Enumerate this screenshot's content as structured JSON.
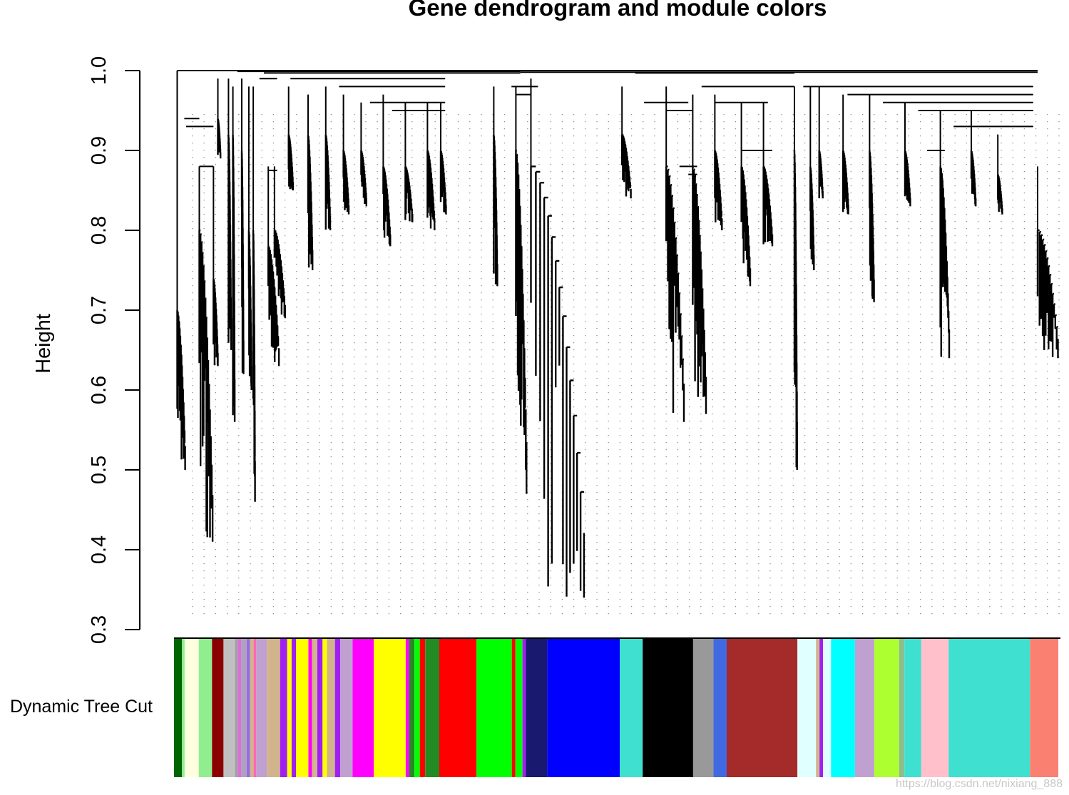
{
  "chart_data": {
    "type": "dendrogram",
    "title": "Gene dendrogram and module colors",
    "ylabel": "Height",
    "xlabel": "",
    "ylim": [
      0.3,
      1.0
    ],
    "yticks": [
      "0.3",
      "0.4",
      "0.5",
      "0.6",
      "0.7",
      "0.8",
      "0.9",
      "1.0"
    ],
    "colorbar_label": "Dynamic Tree Cut",
    "watermark": "https://blog.csdn.net/nixiang_888",
    "leaf_span": [
      0,
      100
    ],
    "branches": [
      {
        "x": 0.2,
        "top": 1.0,
        "bottom": 0.7,
        "dx": 0.9,
        "leaf_end": 0.5
      },
      {
        "x": 2.7,
        "top": 0.88,
        "bottom": 0.8,
        "dx": 1.5,
        "leaf_end": 0.41
      },
      {
        "x": 4.3,
        "top": 0.88,
        "bottom": 0.74,
        "dx": 0.5,
        "leaf_end": 0.63
      },
      {
        "x": 4.8,
        "top": 0.99,
        "bottom": 0.94,
        "dx": 0.3,
        "leaf_end": 0.89
      },
      {
        "x": 6.0,
        "top": 0.99,
        "bottom": 0.92,
        "dx": 0.3,
        "leaf_end": 0.65
      },
      {
        "x": 6.5,
        "top": 0.98,
        "bottom": 0.92,
        "dx": 0.2,
        "leaf_end": 0.56
      },
      {
        "x": 7.5,
        "top": 0.99,
        "bottom": 0.9,
        "dx": 0.2,
        "leaf_end": 0.62
      },
      {
        "x": 8.3,
        "top": 0.98,
        "bottom": 0.8,
        "dx": 0.3,
        "leaf_end": 0.6
      },
      {
        "x": 8.8,
        "top": 0.98,
        "bottom": 0.8,
        "dx": 0.2,
        "leaf_end": 0.46
      },
      {
        "x": 10.5,
        "top": 0.88,
        "bottom": 0.78,
        "dx": 1.2,
        "leaf_end": 0.63
      },
      {
        "x": 11.2,
        "top": 0.88,
        "bottom": 0.8,
        "dx": 1.2,
        "leaf_end": 0.69
      },
      {
        "x": 12.8,
        "top": 0.98,
        "bottom": 0.92,
        "dx": 0.5,
        "leaf_end": 0.85
      },
      {
        "x": 15.0,
        "top": 0.97,
        "bottom": 0.92,
        "dx": 0.5,
        "leaf_end": 0.75
      },
      {
        "x": 17.0,
        "top": 0.98,
        "bottom": 0.92,
        "dx": 0.5,
        "leaf_end": 0.8
      },
      {
        "x": 19.0,
        "top": 0.97,
        "bottom": 0.9,
        "dx": 0.6,
        "leaf_end": 0.82
      },
      {
        "x": 21.0,
        "top": 0.96,
        "bottom": 0.9,
        "dx": 0.6,
        "leaf_end": 0.83
      },
      {
        "x": 23.5,
        "top": 0.97,
        "bottom": 0.88,
        "dx": 0.8,
        "leaf_end": 0.78
      },
      {
        "x": 26.0,
        "top": 0.96,
        "bottom": 0.88,
        "dx": 0.8,
        "leaf_end": 0.81
      },
      {
        "x": 28.5,
        "top": 0.96,
        "bottom": 0.9,
        "dx": 0.8,
        "leaf_end": 0.8
      },
      {
        "x": 30.0,
        "top": 0.96,
        "bottom": 0.9,
        "dx": 0.6,
        "leaf_end": 0.82
      },
      {
        "x": 36.0,
        "top": 0.98,
        "bottom": 0.92,
        "dx": 0.4,
        "leaf_end": 0.73
      },
      {
        "x": 38.5,
        "top": 0.98,
        "bottom": 0.9,
        "dx": 1.2,
        "leaf_end": 0.47
      },
      {
        "x": 40.2,
        "top": 0.99,
        "bottom": 0.88,
        "dx": 6.0,
        "leaf_end": 0.34
      },
      {
        "x": 50.5,
        "top": 0.98,
        "bottom": 0.92,
        "dx": 1.0,
        "leaf_end": 0.84
      },
      {
        "x": 55.5,
        "top": 0.98,
        "bottom": 0.88,
        "dx": 2.0,
        "leaf_end": 0.56
      },
      {
        "x": 58.5,
        "top": 0.97,
        "bottom": 0.88,
        "dx": 1.5,
        "leaf_end": 0.57
      },
      {
        "x": 61.0,
        "top": 0.97,
        "bottom": 0.9,
        "dx": 0.8,
        "leaf_end": 0.8
      },
      {
        "x": 64.0,
        "top": 0.96,
        "bottom": 0.88,
        "dx": 1.0,
        "leaf_end": 0.73
      },
      {
        "x": 66.5,
        "top": 0.96,
        "bottom": 0.88,
        "dx": 1.0,
        "leaf_end": 0.78
      },
      {
        "x": 70.0,
        "top": 0.98,
        "bottom": 0.9,
        "dx": 0.3,
        "leaf_end": 0.5
      },
      {
        "x": 71.8,
        "top": 0.98,
        "bottom": 0.88,
        "dx": 0.4,
        "leaf_end": 0.75
      },
      {
        "x": 72.8,
        "top": 0.98,
        "bottom": 0.9,
        "dx": 0.4,
        "leaf_end": 0.84
      },
      {
        "x": 75.5,
        "top": 0.97,
        "bottom": 0.9,
        "dx": 0.6,
        "leaf_end": 0.82
      },
      {
        "x": 78.5,
        "top": 0.97,
        "bottom": 0.9,
        "dx": 0.5,
        "leaf_end": 0.71
      },
      {
        "x": 82.5,
        "top": 0.96,
        "bottom": 0.9,
        "dx": 0.6,
        "leaf_end": 0.83
      },
      {
        "x": 86.5,
        "top": 0.95,
        "bottom": 0.88,
        "dx": 1.0,
        "leaf_end": 0.64
      },
      {
        "x": 90.0,
        "top": 0.95,
        "bottom": 0.9,
        "dx": 0.5,
        "leaf_end": 0.83
      },
      {
        "x": 93.0,
        "top": 0.92,
        "bottom": 0.87,
        "dx": 0.5,
        "leaf_end": 0.82
      },
      {
        "x": 97.5,
        "top": 0.88,
        "bottom": 0.8,
        "dx": 2.3,
        "leaf_end": 0.64
      }
    ],
    "top_links": [
      {
        "x1": 0.2,
        "x2": 97.5,
        "h": 1.0
      },
      {
        "x1": 7.0,
        "x2": 39.0,
        "h": 0.999
      },
      {
        "x1": 10.0,
        "x2": 39.0,
        "h": 0.997
      },
      {
        "x1": 39.0,
        "x2": 70.0,
        "h": 0.998
      },
      {
        "x1": 52.0,
        "x2": 70.0,
        "h": 0.997
      },
      {
        "x1": 70.0,
        "x2": 97.5,
        "h": 0.998
      },
      {
        "x1": 1.0,
        "x2": 2.7,
        "h": 0.94
      },
      {
        "x1": 1.2,
        "x2": 4.3,
        "h": 0.93
      },
      {
        "x1": 2.7,
        "x2": 4.3,
        "h": 0.88
      },
      {
        "x1": 9.5,
        "x2": 11.5,
        "h": 0.99
      },
      {
        "x1": 10.5,
        "x2": 11.5,
        "h": 0.875
      },
      {
        "x1": 13.0,
        "x2": 30.5,
        "h": 0.99
      },
      {
        "x1": 18.5,
        "x2": 30.5,
        "h": 0.98
      },
      {
        "x1": 22.0,
        "x2": 30.5,
        "h": 0.96
      },
      {
        "x1": 24.5,
        "x2": 30.5,
        "h": 0.95
      },
      {
        "x1": 38.0,
        "x2": 41.0,
        "h": 0.98
      },
      {
        "x1": 38.5,
        "x2": 40.2,
        "h": 0.97
      },
      {
        "x1": 53.0,
        "x2": 58.0,
        "h": 0.96
      },
      {
        "x1": 55.5,
        "x2": 58.5,
        "h": 0.95
      },
      {
        "x1": 57.0,
        "x2": 59.0,
        "h": 0.88
      },
      {
        "x1": 58.0,
        "x2": 59.0,
        "h": 0.87
      },
      {
        "x1": 59.5,
        "x2": 70.0,
        "h": 0.98
      },
      {
        "x1": 61.0,
        "x2": 67.0,
        "h": 0.96
      },
      {
        "x1": 64.0,
        "x2": 67.5,
        "h": 0.9
      },
      {
        "x1": 71.0,
        "x2": 97.0,
        "h": 0.98
      },
      {
        "x1": 76.0,
        "x2": 97.0,
        "h": 0.97
      },
      {
        "x1": 80.0,
        "x2": 97.0,
        "h": 0.96
      },
      {
        "x1": 84.0,
        "x2": 97.0,
        "h": 0.95
      },
      {
        "x1": 88.0,
        "x2": 97.0,
        "h": 0.93
      },
      {
        "x1": 85.0,
        "x2": 87.0,
        "h": 0.9
      }
    ],
    "colors": [
      {
        "color": "#006400",
        "from": 0.0,
        "to": 0.9
      },
      {
        "color": "#90ee90",
        "from": 0.9,
        "to": 1.2
      },
      {
        "color": "#ffffe0",
        "from": 1.2,
        "to": 2.8
      },
      {
        "color": "#90ee90",
        "from": 2.8,
        "to": 4.3
      },
      {
        "color": "#8b0000",
        "from": 4.3,
        "to": 5.6
      },
      {
        "color": "#c0c0c0",
        "from": 5.6,
        "to": 6.9
      },
      {
        "color": "#a0a0a0",
        "from": 6.9,
        "to": 7.2
      },
      {
        "color": "#da70d6",
        "from": 7.2,
        "to": 7.6
      },
      {
        "color": "#b0a0c0",
        "from": 7.6,
        "to": 8.2
      },
      {
        "color": "#9370db",
        "from": 8.2,
        "to": 8.6
      },
      {
        "color": "#d2b48c",
        "from": 8.6,
        "to": 9.0
      },
      {
        "color": "#ff69b4",
        "from": 9.0,
        "to": 9.3
      },
      {
        "color": "#c0a0d0",
        "from": 9.3,
        "to": 10.5
      },
      {
        "color": "#d2b48c",
        "from": 10.5,
        "to": 12.0
      },
      {
        "color": "#a020f0",
        "from": 12.0,
        "to": 12.8
      },
      {
        "color": "#ffff00",
        "from": 12.8,
        "to": 13.3
      },
      {
        "color": "#a020f0",
        "from": 13.3,
        "to": 13.8
      },
      {
        "color": "#ffff00",
        "from": 13.8,
        "to": 15.2
      },
      {
        "color": "#ff00ff",
        "from": 15.2,
        "to": 15.6
      },
      {
        "color": "#d2b48c",
        "from": 15.6,
        "to": 16.2
      },
      {
        "color": "#a020f0",
        "from": 16.2,
        "to": 16.8
      },
      {
        "color": "#ffff00",
        "from": 16.8,
        "to": 17.3
      },
      {
        "color": "#d2b48c",
        "from": 17.3,
        "to": 18.2
      },
      {
        "color": "#a020f0",
        "from": 18.2,
        "to": 18.8
      },
      {
        "color": "#c0a0d0",
        "from": 18.8,
        "to": 20.2
      },
      {
        "color": "#ff00ff",
        "from": 20.2,
        "to": 22.6
      },
      {
        "color": "#ffff00",
        "from": 22.6,
        "to": 26.2
      },
      {
        "color": "#ff00ff",
        "from": 26.2,
        "to": 26.6
      },
      {
        "color": "#228b22",
        "from": 26.6,
        "to": 27.2
      },
      {
        "color": "#00ff00",
        "from": 27.2,
        "to": 27.8
      },
      {
        "color": "#ff0000",
        "from": 27.8,
        "to": 28.4
      },
      {
        "color": "#228b22",
        "from": 28.4,
        "to": 30.0
      },
      {
        "color": "#ff0000",
        "from": 30.0,
        "to": 34.2
      },
      {
        "color": "#00ff00",
        "from": 34.2,
        "to": 38.2
      },
      {
        "color": "#ff0000",
        "from": 38.2,
        "to": 38.6
      },
      {
        "color": "#00ff00",
        "from": 38.6,
        "to": 39.4
      },
      {
        "color": "#a020f0",
        "from": 39.4,
        "to": 39.8
      },
      {
        "color": "#191970",
        "from": 39.8,
        "to": 42.2
      },
      {
        "color": "#0000ff",
        "from": 42.2,
        "to": 50.4
      },
      {
        "color": "#40e0d0",
        "from": 50.4,
        "to": 53.0
      },
      {
        "color": "#000000",
        "from": 53.0,
        "to": 58.7
      },
      {
        "color": "#999999",
        "from": 58.7,
        "to": 61.0
      },
      {
        "color": "#4169e1",
        "from": 61.0,
        "to": 62.5
      },
      {
        "color": "#a52a2a",
        "from": 62.5,
        "to": 70.5
      },
      {
        "color": "#e0ffff",
        "from": 70.5,
        "to": 72.6
      },
      {
        "color": "#d2b48c",
        "from": 72.6,
        "to": 73.0
      },
      {
        "color": "#a020f0",
        "from": 73.0,
        "to": 73.4
      },
      {
        "color": "#e0ffff",
        "from": 73.4,
        "to": 74.3
      },
      {
        "color": "#00ffff",
        "from": 74.3,
        "to": 77.0
      },
      {
        "color": "#c0a0d0",
        "from": 77.0,
        "to": 79.2
      },
      {
        "color": "#adff2f",
        "from": 79.2,
        "to": 82.0
      },
      {
        "color": "#8fbc8f",
        "from": 82.0,
        "to": 82.6
      },
      {
        "color": "#40e0d0",
        "from": 82.6,
        "to": 84.5
      },
      {
        "color": "#ffc0cb",
        "from": 84.5,
        "to": 87.6
      },
      {
        "color": "#40e0d0",
        "from": 87.6,
        "to": 96.8
      },
      {
        "color": "#fa8072",
        "from": 96.8,
        "to": 100.0
      }
    ]
  }
}
